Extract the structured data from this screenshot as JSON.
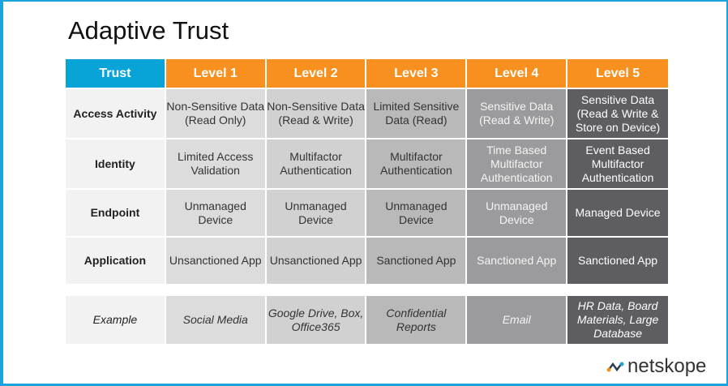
{
  "title": "Adaptive Trust",
  "header": [
    "Trust",
    "Level 1",
    "Level 2",
    "Level 3",
    "Level 4",
    "Level 5"
  ],
  "rows": [
    {
      "label": "Access Activity",
      "cells": [
        "Non-Sensitive Data (Read Only)",
        "Non-Sensitive Data (Read & Write)",
        "Limited Sensitive Data (Read)",
        "Sensitive Data (Read & Write)",
        "Sensitive Data (Read & Write & Store on Device)"
      ]
    },
    {
      "label": "Identity",
      "cells": [
        "Limited Access Validation",
        "Multifactor Authentication",
        "Multifactor Authentication",
        "Time Based Multifactor Authentication",
        "Event Based Multifactor Authentication"
      ]
    },
    {
      "label": "Endpoint",
      "cells": [
        "Unmanaged Device",
        "Unmanaged Device",
        "Unmanaged Device",
        "Unmanaged Device",
        "Managed Device"
      ]
    },
    {
      "label": "Application",
      "cells": [
        "Unsanctioned App",
        "Unsanctioned App",
        "Sanctioned App",
        "Sanctioned App",
        "Sanctioned App"
      ]
    }
  ],
  "example": {
    "label": "Example",
    "cells": [
      "Social Media",
      "Google Drive, Box, Office365",
      "Confidential Reports",
      "Email",
      "HR Data, Board Materials, Large Database"
    ]
  },
  "logo": "netskope",
  "colors": {
    "trust": "#08a4d8",
    "level": "#f7901e",
    "frame": "#1ba3dd"
  }
}
